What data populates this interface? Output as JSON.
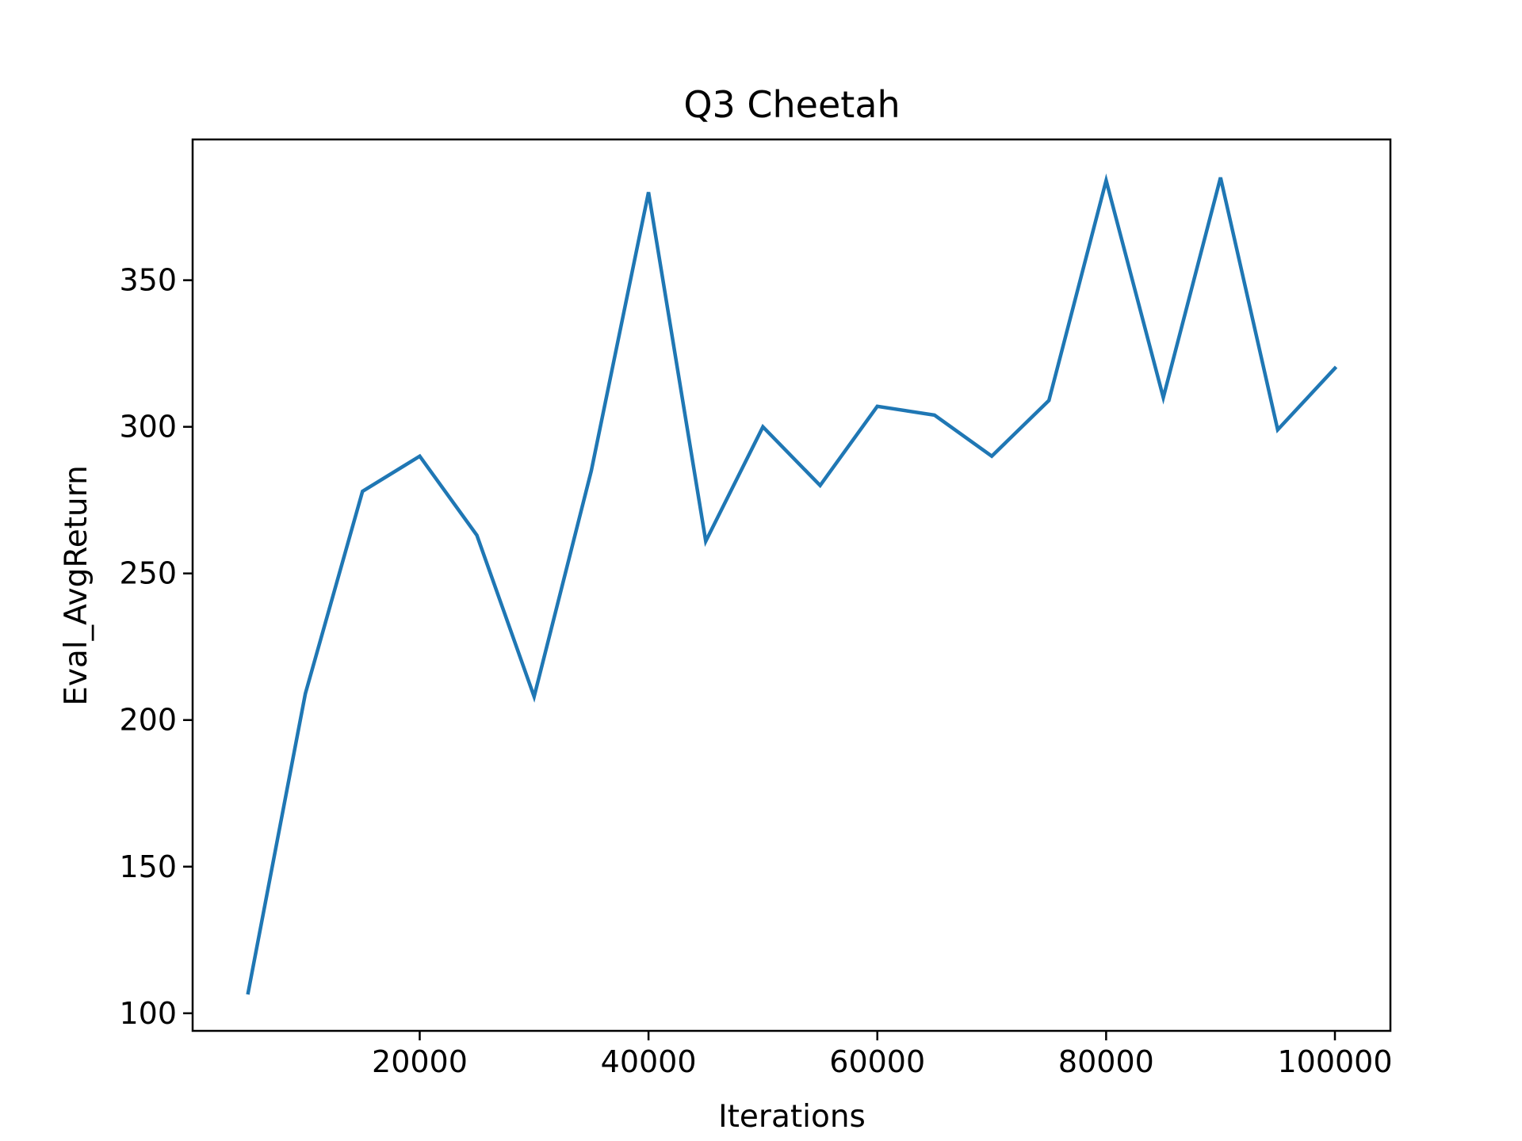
{
  "chart_data": {
    "type": "line",
    "title": "Q3 Cheetah",
    "xlabel": "Iterations",
    "ylabel": "Eval_AvgReturn",
    "xlim": [
      150,
      104850
    ],
    "ylim": [
      94,
      398
    ],
    "xticks": [
      20000,
      40000,
      60000,
      80000,
      100000
    ],
    "yticks": [
      100,
      150,
      200,
      250,
      300,
      350
    ],
    "grid": false,
    "series": [
      {
        "color": "#1f77b4",
        "x": [
          5000,
          10000,
          15000,
          20000,
          25000,
          30000,
          35000,
          40000,
          45000,
          50000,
          55000,
          60000,
          65000,
          70000,
          75000,
          80000,
          85000,
          90000,
          95000,
          100000
        ],
        "y": [
          107,
          209,
          278,
          290,
          263,
          208,
          285,
          380,
          261,
          300,
          280,
          307,
          304,
          290,
          309,
          384,
          310,
          385,
          299,
          320
        ]
      }
    ]
  }
}
